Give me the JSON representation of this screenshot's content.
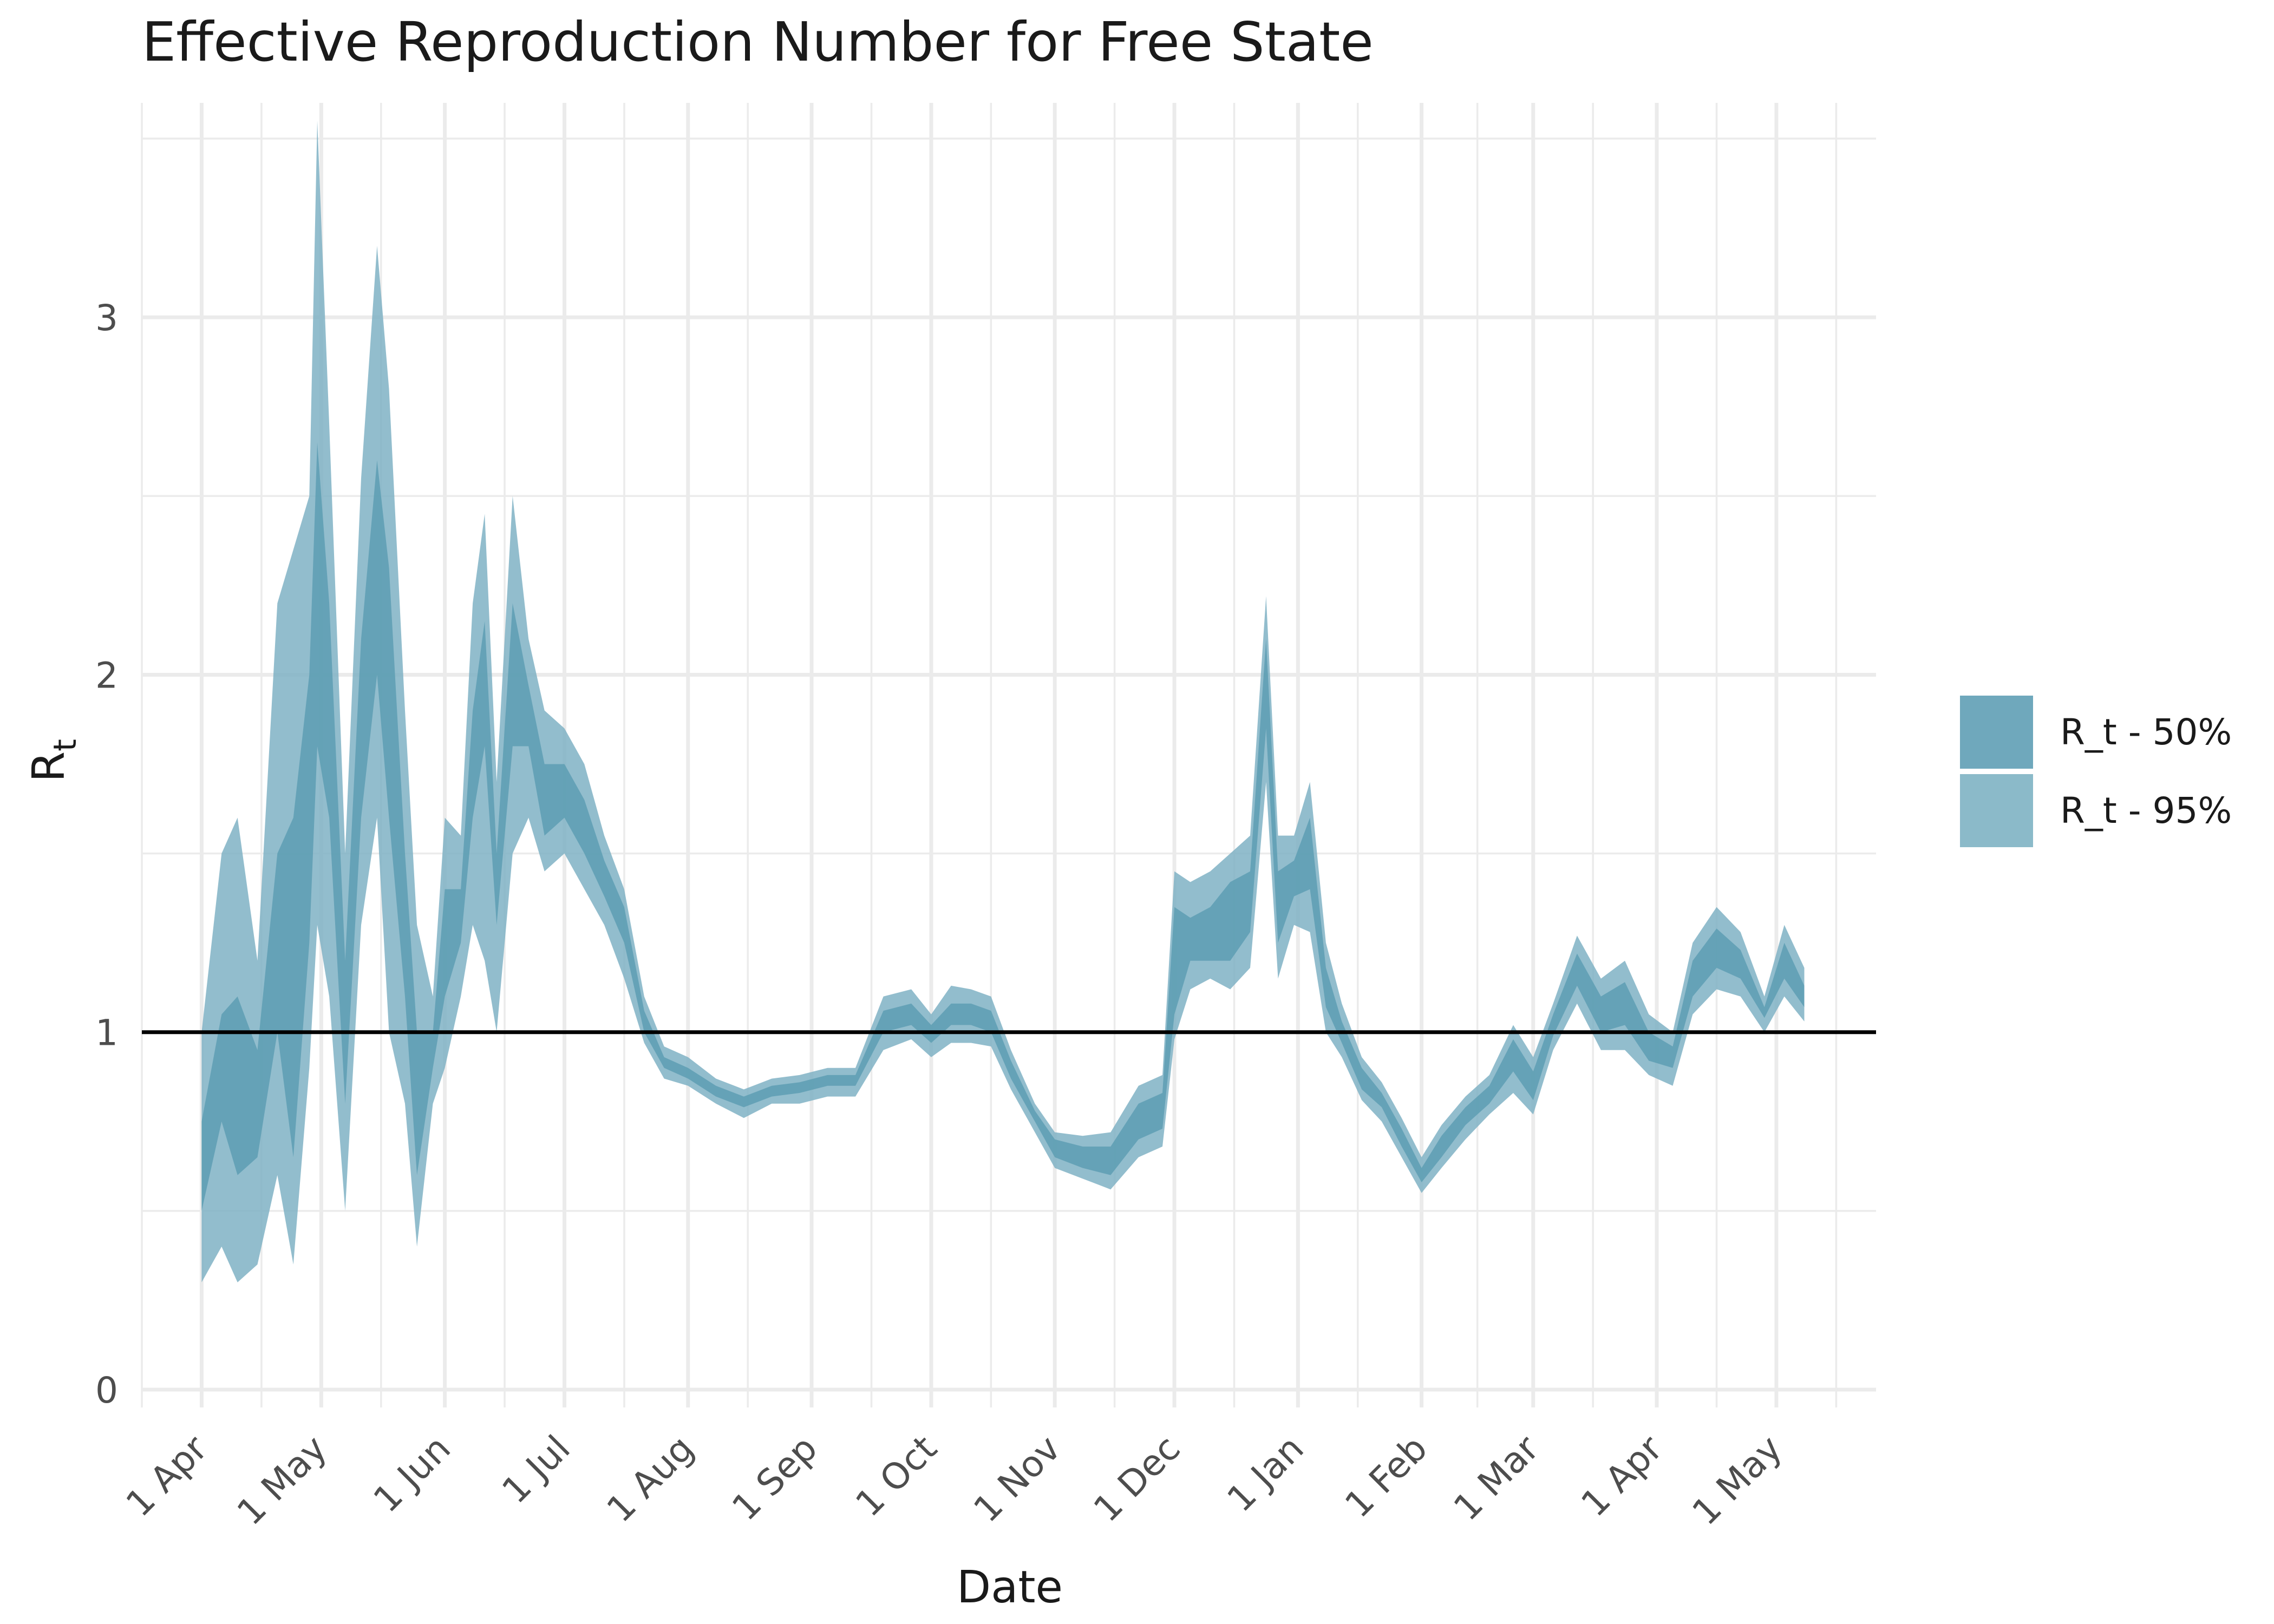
{
  "chart_data": {
    "type": "area",
    "title": "Effective Reproduction Number for Free State",
    "xlabel": "Date",
    "ylabel": "R",
    "ylabel_subscript": "t",
    "x_ticks": [
      "1 Apr",
      "1 May",
      "1 Jun",
      "1 Jul",
      "1 Aug",
      "1 Sep",
      "1 Oct",
      "1 Nov",
      "1 Dec",
      "1 Jan",
      "1 Feb",
      "1 Mar",
      "1 Apr",
      "1 May"
    ],
    "x_tick_dates": [
      "2020-04-01",
      "2020-05-01",
      "2020-06-01",
      "2020-07-01",
      "2020-08-01",
      "2020-09-01",
      "2020-10-01",
      "2020-11-01",
      "2020-12-01",
      "2021-01-01",
      "2021-02-01",
      "2021-03-01",
      "2021-04-01",
      "2021-05-01"
    ],
    "xlim": [
      "2020-03-17",
      "2021-05-26"
    ],
    "y_ticks": [
      0,
      1,
      2,
      3
    ],
    "ylim": [
      -0.05,
      3.6
    ],
    "reference_line": 1,
    "grid": true,
    "legend_position": "right",
    "colors": {
      "band50": "#5d9db3",
      "band95": "#7fb2c4",
      "reference": "#000000",
      "grid": "#ebebeb"
    },
    "legend": [
      {
        "label": "R_t - 50%",
        "color": "#6fa8bc"
      },
      {
        "label": "R_t - 95%",
        "color": "#8bbac9"
      }
    ],
    "series": [
      {
        "name": "R_t - 95%",
        "date": [
          "2020-04-01",
          "2020-04-06",
          "2020-04-10",
          "2020-04-15",
          "2020-04-20",
          "2020-04-24",
          "2020-04-28",
          "2020-04-30",
          "2020-05-03",
          "2020-05-07",
          "2020-05-11",
          "2020-05-15",
          "2020-05-18",
          "2020-05-22",
          "2020-05-25",
          "2020-05-29",
          "2020-06-01",
          "2020-06-05",
          "2020-06-08",
          "2020-06-11",
          "2020-06-14",
          "2020-06-18",
          "2020-06-22",
          "2020-06-26",
          "2020-07-01",
          "2020-07-06",
          "2020-07-11",
          "2020-07-16",
          "2020-07-21",
          "2020-07-26",
          "2020-08-01",
          "2020-08-08",
          "2020-08-15",
          "2020-08-22",
          "2020-08-29",
          "2020-09-05",
          "2020-09-12",
          "2020-09-19",
          "2020-09-26",
          "2020-10-01",
          "2020-10-06",
          "2020-10-11",
          "2020-10-16",
          "2020-10-21",
          "2020-10-27",
          "2020-11-01",
          "2020-11-08",
          "2020-11-15",
          "2020-11-22",
          "2020-11-28",
          "2020-12-01",
          "2020-12-05",
          "2020-12-10",
          "2020-12-15",
          "2020-12-20",
          "2020-12-24",
          "2020-12-27",
          "2020-12-31",
          "2021-01-04",
          "2021-01-08",
          "2021-01-12",
          "2021-01-17",
          "2021-01-22",
          "2021-01-27",
          "2021-02-01",
          "2021-02-06",
          "2021-02-12",
          "2021-02-18",
          "2021-02-24",
          "2021-03-01",
          "2021-03-06",
          "2021-03-12",
          "2021-03-18",
          "2021-03-24",
          "2021-03-30",
          "2021-04-05",
          "2021-04-10",
          "2021-04-16",
          "2021-04-22",
          "2021-04-28",
          "2021-05-03",
          "2021-05-08"
        ],
        "lower": [
          0.3,
          0.4,
          0.3,
          0.35,
          0.6,
          0.35,
          0.9,
          1.3,
          1.1,
          0.5,
          1.3,
          1.6,
          1.0,
          0.8,
          0.4,
          0.8,
          0.9,
          1.1,
          1.3,
          1.2,
          1.0,
          1.5,
          1.6,
          1.45,
          1.5,
          1.4,
          1.3,
          1.15,
          0.97,
          0.87,
          0.85,
          0.8,
          0.76,
          0.8,
          0.8,
          0.82,
          0.82,
          0.95,
          0.98,
          0.93,
          0.97,
          0.97,
          0.96,
          0.84,
          0.72,
          0.62,
          0.59,
          0.56,
          0.65,
          0.68,
          0.98,
          1.12,
          1.15,
          1.12,
          1.18,
          1.7,
          1.15,
          1.3,
          1.28,
          1.0,
          0.93,
          0.81,
          0.75,
          0.65,
          0.55,
          0.62,
          0.7,
          0.77,
          0.83,
          0.77,
          0.95,
          1.08,
          0.95,
          0.95,
          0.88,
          0.85,
          1.05,
          1.12,
          1.1,
          1.0,
          1.1,
          1.03
        ],
        "upper": [
          1.0,
          1.5,
          1.6,
          1.2,
          2.2,
          2.35,
          2.5,
          3.55,
          2.7,
          1.5,
          2.55,
          3.2,
          2.8,
          1.9,
          1.3,
          1.1,
          1.6,
          1.55,
          2.2,
          2.45,
          1.7,
          2.5,
          2.1,
          1.9,
          1.85,
          1.75,
          1.55,
          1.4,
          1.1,
          0.96,
          0.93,
          0.87,
          0.84,
          0.87,
          0.88,
          0.9,
          0.9,
          1.1,
          1.12,
          1.05,
          1.13,
          1.12,
          1.1,
          0.95,
          0.8,
          0.72,
          0.71,
          0.72,
          0.85,
          0.88,
          1.45,
          1.42,
          1.45,
          1.5,
          1.55,
          2.22,
          1.55,
          1.55,
          1.7,
          1.25,
          1.08,
          0.93,
          0.86,
          0.76,
          0.65,
          0.74,
          0.82,
          0.88,
          1.02,
          0.93,
          1.08,
          1.27,
          1.15,
          1.2,
          1.05,
          1.0,
          1.25,
          1.35,
          1.28,
          1.1,
          1.3,
          1.18
        ]
      },
      {
        "name": "R_t - 50%",
        "date": [
          "2020-04-01",
          "2020-04-06",
          "2020-04-10",
          "2020-04-15",
          "2020-04-20",
          "2020-04-24",
          "2020-04-28",
          "2020-04-30",
          "2020-05-03",
          "2020-05-07",
          "2020-05-11",
          "2020-05-15",
          "2020-05-18",
          "2020-05-22",
          "2020-05-25",
          "2020-05-29",
          "2020-06-01",
          "2020-06-05",
          "2020-06-08",
          "2020-06-11",
          "2020-06-14",
          "2020-06-18",
          "2020-06-22",
          "2020-06-26",
          "2020-07-01",
          "2020-07-06",
          "2020-07-11",
          "2020-07-16",
          "2020-07-21",
          "2020-07-26",
          "2020-08-01",
          "2020-08-08",
          "2020-08-15",
          "2020-08-22",
          "2020-08-29",
          "2020-09-05",
          "2020-09-12",
          "2020-09-19",
          "2020-09-26",
          "2020-10-01",
          "2020-10-06",
          "2020-10-11",
          "2020-10-16",
          "2020-10-21",
          "2020-10-27",
          "2020-11-01",
          "2020-11-08",
          "2020-11-15",
          "2020-11-22",
          "2020-11-28",
          "2020-12-01",
          "2020-12-05",
          "2020-12-10",
          "2020-12-15",
          "2020-12-20",
          "2020-12-24",
          "2020-12-27",
          "2020-12-31",
          "2021-01-04",
          "2021-01-08",
          "2021-01-12",
          "2021-01-17",
          "2021-01-22",
          "2021-01-27",
          "2021-02-01",
          "2021-02-06",
          "2021-02-12",
          "2021-02-18",
          "2021-02-24",
          "2021-03-01",
          "2021-03-06",
          "2021-03-12",
          "2021-03-18",
          "2021-03-24",
          "2021-03-30",
          "2021-04-05",
          "2021-04-10",
          "2021-04-16",
          "2021-04-22",
          "2021-04-28",
          "2021-05-03",
          "2021-05-08"
        ],
        "lower": [
          0.5,
          0.75,
          0.6,
          0.65,
          1.0,
          0.65,
          1.25,
          1.8,
          1.6,
          0.8,
          1.6,
          2.0,
          1.6,
          1.1,
          0.6,
          0.9,
          1.1,
          1.25,
          1.6,
          1.8,
          1.3,
          1.8,
          1.8,
          1.55,
          1.6,
          1.5,
          1.38,
          1.25,
          1.0,
          0.9,
          0.87,
          0.82,
          0.79,
          0.82,
          0.83,
          0.85,
          0.85,
          1.0,
          1.02,
          0.97,
          1.02,
          1.02,
          1.0,
          0.87,
          0.75,
          0.65,
          0.62,
          0.6,
          0.7,
          0.73,
          1.05,
          1.2,
          1.2,
          1.2,
          1.28,
          1.85,
          1.25,
          1.38,
          1.4,
          1.07,
          0.97,
          0.84,
          0.79,
          0.68,
          0.58,
          0.65,
          0.74,
          0.8,
          0.89,
          0.81,
          0.99,
          1.13,
          1.0,
          1.02,
          0.92,
          0.9,
          1.1,
          1.18,
          1.15,
          1.04,
          1.15,
          1.07
        ],
        "upper": [
          0.75,
          1.05,
          1.1,
          0.95,
          1.5,
          1.6,
          2.0,
          2.65,
          2.2,
          1.2,
          2.1,
          2.6,
          2.3,
          1.5,
          1.0,
          1.0,
          1.4,
          1.4,
          1.9,
          2.15,
          1.5,
          2.2,
          1.97,
          1.75,
          1.75,
          1.65,
          1.48,
          1.35,
          1.06,
          0.93,
          0.9,
          0.85,
          0.82,
          0.85,
          0.86,
          0.88,
          0.88,
          1.06,
          1.08,
          1.02,
          1.08,
          1.08,
          1.06,
          0.92,
          0.78,
          0.7,
          0.68,
          0.68,
          0.8,
          0.83,
          1.35,
          1.32,
          1.35,
          1.42,
          1.45,
          2.1,
          1.45,
          1.48,
          1.6,
          1.18,
          1.03,
          0.9,
          0.83,
          0.73,
          0.62,
          0.71,
          0.79,
          0.85,
          0.98,
          0.89,
          1.05,
          1.22,
          1.1,
          1.14,
          1.0,
          0.96,
          1.2,
          1.29,
          1.23,
          1.07,
          1.25,
          1.13
        ]
      }
    ]
  }
}
